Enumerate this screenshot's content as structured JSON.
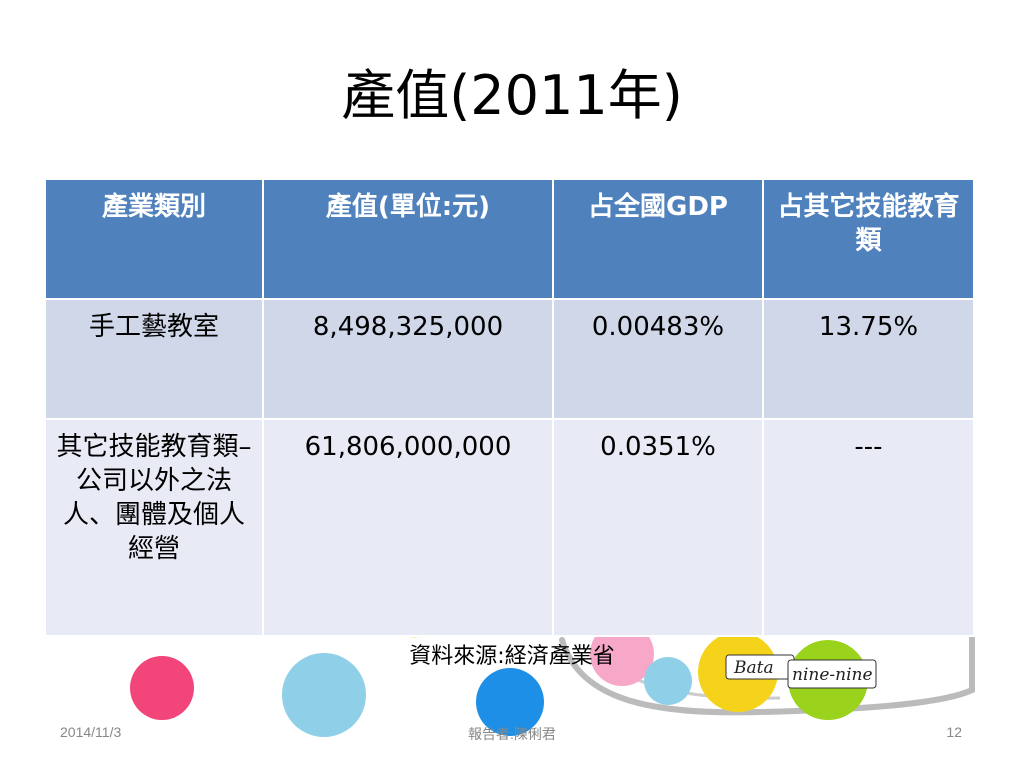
{
  "slide": {
    "title": "產值(2011年)",
    "table": {
      "headers": [
        "產業類別",
        "產值(單位:元)",
        "占全國GDP",
        "占其它技能教育類"
      ],
      "rows": [
        [
          "手工藝教室",
          "8,498,325,000",
          "0.00483%",
          "13.75%"
        ],
        [
          "其它技能教育類–公司以外之法人、團體及個人經營",
          "61,806,000,000",
          "0.0351%",
          "---"
        ]
      ]
    },
    "source": "資料來源:経済產業省",
    "footer": {
      "date": "2014/11/3",
      "presenter": "報告者:陳俐君",
      "page": "12"
    },
    "decor": {
      "label_left": "Bata",
      "label_right": "nine-nine"
    }
  },
  "colors": {
    "header_bg": "#4f81bd",
    "row1_bg": "#cfd7e8",
    "row2_bg": "#e8ebf5",
    "circle_pink": "#f2457a",
    "circle_lightblue": "#8fd0e8",
    "circle_blue": "#1e8fe6",
    "circle_yellow": "#f5d31a",
    "circle_green": "#9bd21c"
  }
}
